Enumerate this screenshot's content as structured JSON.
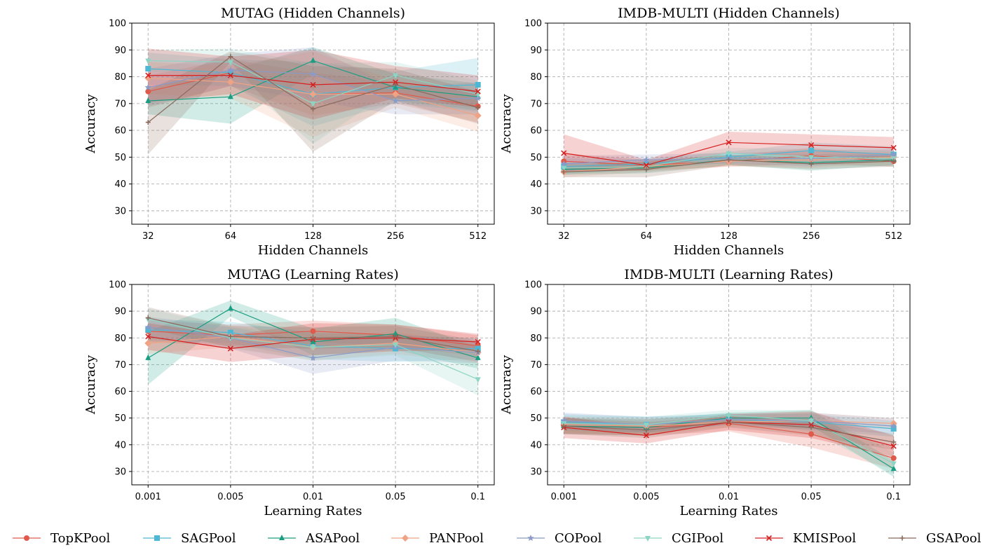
{
  "figure": {
    "legend": [
      {
        "name": "TopKPool",
        "color": "#e05a4b",
        "marker": "circle"
      },
      {
        "name": "SAGPool",
        "color": "#4db8d4",
        "marker": "square"
      },
      {
        "name": "ASAPool",
        "color": "#1a9e82",
        "marker": "triangle"
      },
      {
        "name": "PANPool",
        "color": "#f0a384",
        "marker": "diamond"
      },
      {
        "name": "COPool",
        "color": "#8a9bc7",
        "marker": "star"
      },
      {
        "name": "CGIPool",
        "color": "#8ed4c4",
        "marker": "triangle-down"
      },
      {
        "name": "KMISPool",
        "color": "#d62020",
        "marker": "x"
      },
      {
        "name": "GSAPool",
        "color": "#8a6a5c",
        "marker": "plus"
      }
    ]
  },
  "chart_data": [
    {
      "type": "line",
      "title": "MUTAG (Hidden Channels)",
      "xlabel": "Hidden Channels",
      "ylabel": "Accuracy",
      "categories": [
        "32",
        "64",
        "128",
        "256",
        "512"
      ],
      "ylim": [
        25,
        100
      ],
      "yticks": [
        "30",
        "40",
        "50",
        "60",
        "70",
        "80",
        "90",
        "100"
      ],
      "series": [
        {
          "name": "TopKPool",
          "values": [
            74.5,
            81.5,
            73.5,
            74.0,
            69.0
          ],
          "spread": [
            6,
            5,
            8,
            4,
            6
          ]
        },
        {
          "name": "SAGPool",
          "values": [
            83.0,
            81.5,
            73.5,
            76.0,
            77.0
          ],
          "spread": [
            6,
            5,
            12,
            6,
            10
          ]
        },
        {
          "name": "ASAPool",
          "values": [
            71.0,
            72.5,
            86.0,
            76.0,
            72.5
          ],
          "spread": [
            5,
            10,
            5,
            5,
            5
          ]
        },
        {
          "name": "PANPool",
          "values": [
            79.5,
            78.0,
            73.5,
            73.5,
            65.5
          ],
          "spread": [
            6,
            6,
            16,
            5,
            6
          ]
        },
        {
          "name": "COPool",
          "values": [
            76.0,
            82.5,
            81.0,
            71.0,
            72.0
          ],
          "spread": [
            7,
            6,
            10,
            5,
            6
          ]
        },
        {
          "name": "CGIPool",
          "values": [
            86.0,
            85.5,
            70.0,
            80.5,
            73.5
          ],
          "spread": [
            4,
            5,
            15,
            5,
            5
          ]
        },
        {
          "name": "KMISPool",
          "values": [
            80.5,
            80.5,
            77.0,
            78.0,
            74.5
          ],
          "spread": [
            10,
            7,
            13,
            6,
            6
          ]
        },
        {
          "name": "GSAPool",
          "values": [
            63.0,
            87.5,
            68.0,
            77.0,
            68.5
          ],
          "spread": [
            12,
            2,
            16,
            6,
            6
          ]
        }
      ]
    },
    {
      "type": "line",
      "title": "IMDB-MULTI (Hidden Channels)",
      "xlabel": "Hidden Channels",
      "ylabel": "Accuracy",
      "categories": [
        "32",
        "64",
        "128",
        "256",
        "512"
      ],
      "ylim": [
        25,
        100
      ],
      "yticks": [
        "30",
        "40",
        "50",
        "60",
        "70",
        "80",
        "90",
        "100"
      ],
      "series": [
        {
          "name": "TopKPool",
          "values": [
            48.5,
            47.0,
            48.5,
            50.5,
            48.5
          ],
          "spread": [
            3,
            2,
            2,
            3,
            2
          ]
        },
        {
          "name": "SAGPool",
          "values": [
            46.5,
            47.5,
            50.0,
            52.5,
            51.0
          ],
          "spread": [
            3,
            2,
            2,
            3,
            3
          ]
        },
        {
          "name": "ASAPool",
          "values": [
            45.5,
            46.0,
            49.0,
            48.0,
            49.0
          ],
          "spread": [
            2,
            2,
            2,
            3,
            2
          ]
        },
        {
          "name": "PANPool",
          "values": [
            44.5,
            46.5,
            48.5,
            49.0,
            50.0
          ],
          "spread": [
            2,
            2,
            2,
            3,
            2
          ]
        },
        {
          "name": "COPool",
          "values": [
            47.5,
            49.0,
            49.5,
            49.5,
            51.0
          ],
          "spread": [
            3,
            2,
            2,
            3,
            2
          ]
        },
        {
          "name": "CGIPool",
          "values": [
            46.0,
            46.5,
            51.5,
            50.0,
            49.5
          ],
          "spread": [
            2,
            2,
            2,
            3,
            3
          ]
        },
        {
          "name": "KMISPool",
          "values": [
            51.5,
            47.0,
            55.5,
            54.5,
            53.5
          ],
          "spread": [
            7,
            2,
            4,
            4,
            4
          ]
        },
        {
          "name": "GSAPool",
          "values": [
            44.5,
            45.5,
            49.0,
            47.5,
            48.5
          ],
          "spread": [
            2,
            3,
            2,
            2,
            2
          ]
        }
      ]
    },
    {
      "type": "line",
      "title": "MUTAG (Learning Rates)",
      "xlabel": "Learning Rates",
      "ylabel": "Accuracy",
      "categories": [
        "0.001",
        "0.005",
        "0.01",
        "0.05",
        "0.1"
      ],
      "ylim": [
        25,
        100
      ],
      "yticks": [
        "30",
        "40",
        "50",
        "60",
        "70",
        "80",
        "90",
        "100"
      ],
      "series": [
        {
          "name": "TopKPool",
          "values": [
            82.5,
            81.0,
            82.5,
            81.0,
            77.0
          ],
          "spread": [
            4,
            4,
            4,
            4,
            4
          ]
        },
        {
          "name": "SAGPool",
          "values": [
            83.0,
            82.0,
            77.0,
            76.0,
            76.0
          ],
          "spread": [
            4,
            4,
            5,
            5,
            4
          ]
        },
        {
          "name": "ASAPool",
          "values": [
            72.5,
            91.0,
            78.5,
            81.5,
            72.5
          ],
          "spread": [
            10,
            3,
            5,
            6,
            4
          ]
        },
        {
          "name": "PANPool",
          "values": [
            78.0,
            80.5,
            76.5,
            78.0,
            74.5
          ],
          "spread": [
            4,
            4,
            5,
            4,
            4
          ]
        },
        {
          "name": "COPool",
          "values": [
            84.0,
            80.0,
            72.5,
            76.5,
            74.5
          ],
          "spread": [
            4,
            4,
            6,
            5,
            4
          ]
        },
        {
          "name": "CGIPool",
          "values": [
            87.0,
            80.0,
            76.5,
            77.5,
            64.5
          ],
          "spread": [
            4,
            4,
            5,
            4,
            6
          ]
        },
        {
          "name": "KMISPool",
          "values": [
            80.5,
            76.0,
            79.5,
            80.0,
            78.5
          ],
          "spread": [
            5,
            5,
            6,
            5,
            3
          ]
        },
        {
          "name": "GSAPool",
          "values": [
            87.5,
            80.5,
            80.0,
            80.5,
            75.0
          ],
          "spread": [
            4,
            4,
            4,
            4,
            4
          ]
        }
      ]
    },
    {
      "type": "line",
      "title": "IMDB-MULTI (Learning Rates)",
      "xlabel": "Learning Rates",
      "ylabel": "Accuracy",
      "categories": [
        "0.001",
        "0.005",
        "0.01",
        "0.05",
        "0.1"
      ],
      "ylim": [
        25,
        100
      ],
      "yticks": [
        "30",
        "40",
        "50",
        "60",
        "70",
        "80",
        "90",
        "100"
      ],
      "series": [
        {
          "name": "TopKPool",
          "values": [
            47.0,
            46.5,
            48.0,
            44.0,
            35.0
          ],
          "spread": [
            3,
            3,
            3,
            5,
            4
          ]
        },
        {
          "name": "SAGPool",
          "values": [
            48.5,
            47.5,
            49.5,
            48.5,
            46.0
          ],
          "spread": [
            3,
            3,
            2,
            3,
            3
          ]
        },
        {
          "name": "ASAPool",
          "values": [
            47.0,
            46.5,
            50.0,
            50.0,
            31.0
          ],
          "spread": [
            3,
            3,
            2,
            3,
            3
          ]
        },
        {
          "name": "PANPool",
          "values": [
            47.5,
            47.0,
            48.5,
            49.0,
            48.0
          ],
          "spread": [
            3,
            3,
            2,
            3,
            2
          ]
        },
        {
          "name": "COPool",
          "values": [
            49.0,
            47.5,
            49.5,
            49.0,
            47.0
          ],
          "spread": [
            3,
            3,
            2,
            3,
            3
          ]
        },
        {
          "name": "CGIPool",
          "values": [
            48.0,
            47.5,
            51.0,
            49.0,
            33.0
          ],
          "spread": [
            3,
            3,
            2,
            4,
            4
          ]
        },
        {
          "name": "KMISPool",
          "values": [
            46.5,
            43.5,
            48.5,
            47.5,
            39.5
          ],
          "spread": [
            4,
            3,
            3,
            5,
            4
          ]
        },
        {
          "name": "GSAPool",
          "values": [
            47.0,
            45.5,
            48.5,
            46.5,
            41.0
          ],
          "spread": [
            3,
            3,
            2,
            3,
            3
          ]
        }
      ]
    }
  ]
}
